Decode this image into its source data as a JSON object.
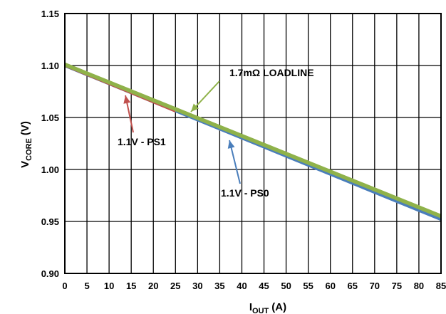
{
  "chart_data": {
    "type": "line",
    "xlabel_main": "I",
    "xlabel_sub": "OUT",
    "xlabel_unit": "(A)",
    "ylabel_main": "V",
    "ylabel_sub": "CORE",
    "ylabel_unit": "(V)",
    "xlim": [
      0,
      85
    ],
    "ylim": [
      0.9,
      1.15
    ],
    "x_ticks": [
      "0",
      "5",
      "10",
      "15",
      "20",
      "25",
      "30",
      "35",
      "40",
      "45",
      "50",
      "55",
      "60",
      "65",
      "70",
      "75",
      "80",
      "85"
    ],
    "y_ticks": [
      "0.90",
      "0.95",
      "1.00",
      "1.05",
      "1.10",
      "1.15"
    ],
    "grid": true,
    "series": [
      {
        "name": "1.1V - PS0",
        "color": "#4a7ebb",
        "x": [
          0,
          85
        ],
        "y": [
          1.1,
          0.952
        ]
      },
      {
        "name": "1.1V - PS1",
        "color": "#c0504d",
        "x": [
          0,
          25
        ],
        "y": [
          1.1,
          1.056
        ]
      },
      {
        "name": "1.7mΩ LOADLINE",
        "color": "#8fb24a",
        "x": [
          0,
          85
        ],
        "y": [
          1.101,
          0.955
        ]
      }
    ],
    "annotations": [
      {
        "text": "1.7mΩ LOADLINE",
        "color": "#8fb24a"
      },
      {
        "text": "1.1V - PS1",
        "color": "#c0504d"
      },
      {
        "text": "1.1V - PS0",
        "color": "#4a7ebb"
      }
    ]
  }
}
